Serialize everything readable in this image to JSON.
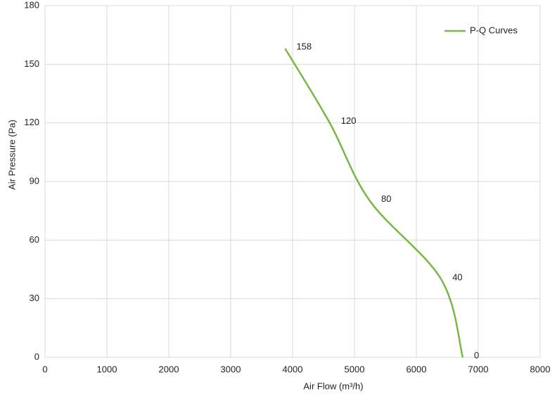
{
  "chart_data": {
    "type": "line",
    "x_label": "Air Flow  (m³/h)",
    "y_label": "Air Pressure  (Pa)",
    "x": [
      3880,
      4600,
      5250,
      6400,
      6750
    ],
    "series": [
      {
        "name": "P-Q Curves",
        "color": "#7ab648",
        "values": [
          158,
          120,
          80,
          40,
          0
        ]
      }
    ],
    "xlim": [
      0,
      8000
    ],
    "xticks": [
      0,
      1000,
      2000,
      3000,
      4000,
      5000,
      6000,
      7000,
      8000
    ],
    "ylim": [
      0,
      180
    ],
    "yticks": [
      0,
      30,
      60,
      90,
      120,
      150,
      180
    ],
    "grid": true,
    "legend": "top-right",
    "data_labels": true
  }
}
